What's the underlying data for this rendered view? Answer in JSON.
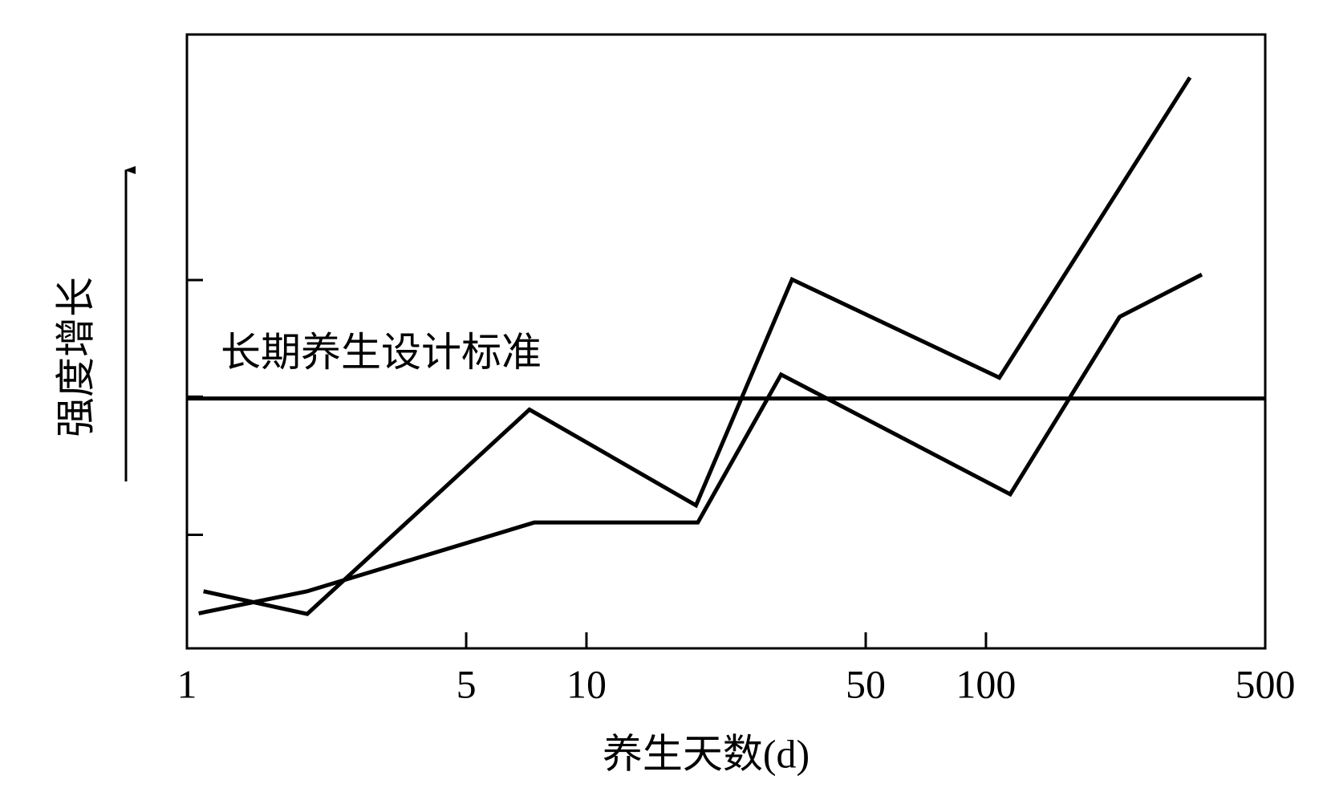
{
  "chart_data": {
    "type": "line",
    "x_label": "养生天数(d)",
    "y_label": "强度增长",
    "xscale": "log",
    "xlim": [
      1,
      500
    ],
    "xticks": [
      1,
      5,
      10,
      50,
      100,
      500
    ],
    "ylim": [
      0,
      100
    ],
    "yticks": [
      18.5,
      41,
      60
    ],
    "reference_line": {
      "value": 40.7,
      "label": "长期养生设计标准"
    },
    "series": [
      {
        "color": "#000000",
        "x": [
          1.1,
          2,
          7.2,
          18.8,
          32.7,
          108,
          324
        ],
        "values": [
          9.3,
          5.6,
          38.9,
          23.3,
          60.1,
          44.1,
          93.0
        ]
      },
      {
        "color": "#000000",
        "x": [
          1.07,
          2,
          7.4,
          19.0,
          30.7,
          115,
          216,
          347
        ],
        "values": [
          5.7,
          9.3,
          20.5,
          20.5,
          44.6,
          25.1,
          54.0,
          60.9
        ]
      }
    ]
  }
}
